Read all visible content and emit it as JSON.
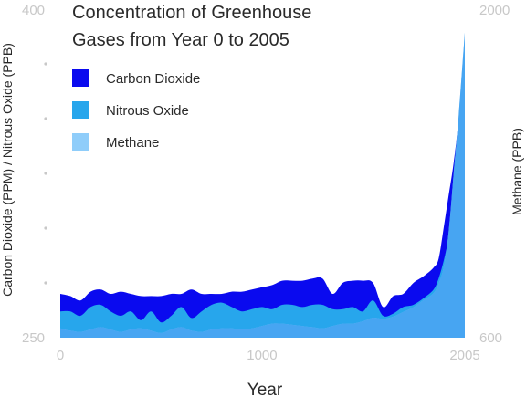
{
  "chart_data": {
    "type": "area",
    "title_lines": [
      "Concentration of Greenhouse",
      "Gases from Year 0 to 2005"
    ],
    "xlabel": "Year",
    "ylabel_left": "Carbon Dioxide (PPM) / Nitrous Oxide (PPB)",
    "ylabel_right": "Methane (PPB)",
    "xlim": [
      0,
      2005
    ],
    "ylim_left": [
      250,
      400
    ],
    "ylim_right": [
      600,
      2000
    ],
    "x_ticks": [
      {
        "value": 0,
        "label": "0"
      },
      {
        "value": 1000,
        "label": "1000"
      },
      {
        "value": 2005,
        "label": "2005"
      }
    ],
    "left_tick_labels": [
      {
        "value": 400,
        "label": "400"
      },
      {
        "value": 250,
        "label": "250"
      }
    ],
    "right_tick_labels": [
      {
        "value": 2000,
        "label": "2000"
      },
      {
        "value": 600,
        "label": "600"
      }
    ],
    "left_minor_ticks": [
      375,
      350,
      325,
      300,
      275
    ],
    "grid": false,
    "legend_position": "top-left",
    "series": [
      {
        "name": "Carbon Dioxide",
        "axis": "left",
        "color": "#0a0aef",
        "x": [
          0,
          50,
          100,
          150,
          200,
          250,
          300,
          350,
          400,
          450,
          500,
          550,
          600,
          650,
          700,
          750,
          800,
          850,
          900,
          950,
          1000,
          1050,
          1100,
          1150,
          1200,
          1250,
          1300,
          1350,
          1400,
          1450,
          1500,
          1550,
          1600,
          1650,
          1700,
          1750,
          1800,
          1850,
          1875,
          1900,
          1925,
          1950,
          1975,
          2005
        ],
        "values": [
          270,
          269,
          267,
          271,
          272,
          270,
          271,
          270,
          269,
          269,
          269,
          270,
          270,
          272,
          270,
          270,
          270,
          271,
          271,
          272,
          273,
          274,
          276,
          276,
          276,
          277,
          277,
          270,
          275,
          276,
          276,
          275,
          264,
          269,
          270,
          275,
          278,
          282,
          286,
          300,
          315,
          330,
          350,
          380
        ]
      },
      {
        "name": "Nitrous Oxide",
        "axis": "left",
        "color": "#27a6ec",
        "x": [
          0,
          50,
          100,
          150,
          200,
          250,
          300,
          350,
          400,
          450,
          500,
          550,
          600,
          650,
          700,
          750,
          800,
          850,
          900,
          950,
          1000,
          1050,
          1100,
          1150,
          1200,
          1250,
          1300,
          1350,
          1400,
          1450,
          1500,
          1550,
          1600,
          1650,
          1700,
          1750,
          1800,
          1850,
          1875,
          1900,
          1925,
          1950,
          1975,
          2005
        ],
        "values": [
          262,
          262,
          260,
          264,
          265,
          262,
          260,
          262,
          258,
          262,
          257,
          260,
          264,
          259,
          262,
          265,
          266,
          264,
          262,
          263,
          264,
          263,
          265,
          265,
          264,
          265,
          265,
          263,
          263,
          264,
          262,
          267,
          260,
          261,
          264,
          265,
          268,
          272,
          277,
          285,
          295,
          305,
          315,
          325
        ]
      },
      {
        "name": "Methane",
        "axis": "right",
        "color": "#8fcdfa",
        "x": [
          0,
          50,
          100,
          150,
          200,
          250,
          300,
          350,
          400,
          450,
          500,
          550,
          600,
          650,
          700,
          750,
          800,
          850,
          900,
          950,
          1000,
          1050,
          1100,
          1150,
          1200,
          1250,
          1300,
          1350,
          1400,
          1450,
          1500,
          1550,
          1600,
          1650,
          1700,
          1750,
          1800,
          1850,
          1875,
          1900,
          1925,
          1950,
          1975,
          2005
        ],
        "values": [
          640,
          630,
          625,
          635,
          645,
          635,
          625,
          635,
          640,
          630,
          620,
          635,
          645,
          630,
          625,
          635,
          640,
          640,
          635,
          640,
          650,
          660,
          660,
          655,
          650,
          645,
          640,
          650,
          660,
          660,
          670,
          685,
          680,
          690,
          710,
          730,
          760,
          790,
          830,
          900,
          1050,
          1300,
          1550,
          1900
        ]
      }
    ]
  }
}
